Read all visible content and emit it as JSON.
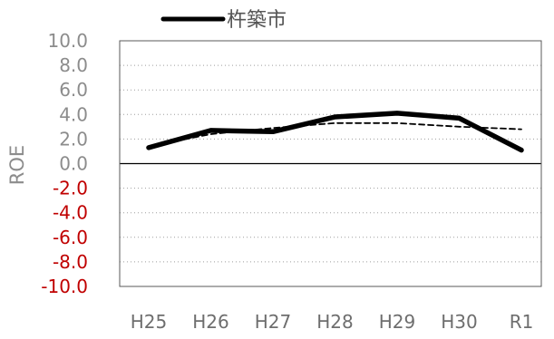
{
  "chart_data": {
    "type": "line",
    "categories": [
      "H25",
      "H26",
      "H27",
      "H28",
      "H29",
      "H30",
      "R1"
    ],
    "series": [
      {
        "name": "杵築市",
        "style": "solid",
        "values": [
          1.3,
          2.7,
          2.6,
          3.8,
          4.1,
          3.7,
          1.1
        ]
      },
      {
        "style": "dashed",
        "values": [
          1.4,
          2.4,
          2.9,
          3.3,
          3.3,
          3.0,
          2.8
        ]
      }
    ],
    "ylabel": "ROE",
    "ylim": [
      -10,
      10
    ],
    "yticks": [
      "10.0",
      "8.0",
      "6.0",
      "4.0",
      "2.0",
      "0.0",
      "-2.0",
      "-4.0",
      "-6.0",
      "-8.0",
      "-10.0"
    ],
    "grid": "horizontal dotted",
    "legend": "top-left",
    "colors": {
      "line": "#000000",
      "positive_tick": "#8c8c8c",
      "negative_tick": "#c00000"
    }
  }
}
